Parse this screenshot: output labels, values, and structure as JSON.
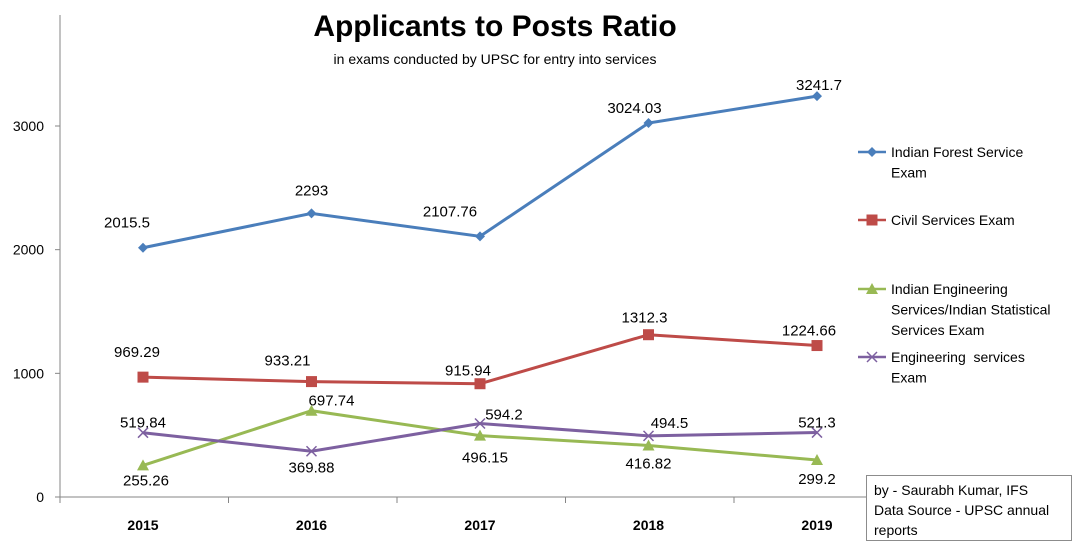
{
  "chart_data": {
    "type": "line",
    "title": "Applicants to Posts Ratio",
    "subtitle": "in exams conducted by UPSC for entry into services",
    "categories": [
      "2015",
      "2016",
      "2017",
      "2018",
      "2019"
    ],
    "ylim": [
      0,
      3000
    ],
    "yticks": [
      0,
      1000,
      2000,
      3000
    ],
    "grid": false,
    "legend_position": "right",
    "series": [
      {
        "name": "Indian Forest Service Exam",
        "legend_lines": [
          "Indian Forest Service",
          "Exam"
        ],
        "color": "#4a7ebb",
        "marker": "diamond",
        "values": [
          2015.5,
          2293,
          2107.76,
          3024.03,
          3241.7
        ],
        "labels": [
          "2015.5",
          "2293",
          "2107.76",
          "3024.03",
          "3241.7"
        ]
      },
      {
        "name": "Civil Services Exam",
        "legend_lines": [
          "Civil Services Exam"
        ],
        "color": "#be4b48",
        "marker": "square",
        "values": [
          969.29,
          933.21,
          915.94,
          1312.3,
          1224.66
        ],
        "labels": [
          "969.29",
          "933.21",
          "915.94",
          "1312.3",
          "1224.66"
        ]
      },
      {
        "name": "Indian Engineering Services/Indian Statistical Services Exam",
        "legend_lines": [
          "Indian Engineering",
          "Services/Indian Statistical",
          "Services Exam"
        ],
        "color": "#98b954",
        "marker": "triangle",
        "values": [
          255.26,
          697.74,
          496.15,
          416.82,
          299.2
        ],
        "labels": [
          "255.26",
          "697.74",
          "496.15",
          "416.82",
          "299.2"
        ]
      },
      {
        "name": "Engineering services Exam",
        "legend_lines": [
          "Engineering  services",
          "Exam"
        ],
        "color": "#7d60a0",
        "marker": "x",
        "values": [
          519.84,
          369.88,
          594.2,
          494.5,
          521.3
        ],
        "labels": [
          "519.84",
          "369.88",
          "594.2",
          "494.5",
          "521.3"
        ]
      }
    ],
    "annotation": [
      "by - Saurabh Kumar, IFS",
      "Data Source - UPSC annual",
      "reports"
    ]
  }
}
